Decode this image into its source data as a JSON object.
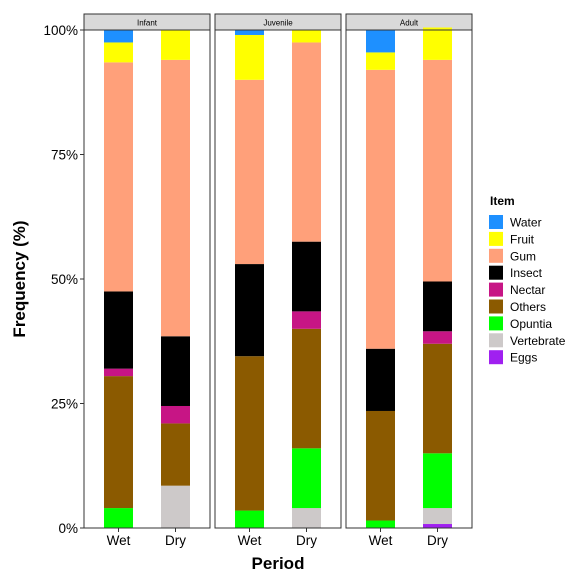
{
  "chart_data": {
    "type": "bar",
    "stacked": true,
    "normalized": true,
    "xlabel": "Period",
    "ylabel": "Frequency (%)",
    "ylim": [
      0,
      100
    ],
    "yticks": [
      "0%",
      "25%",
      "50%",
      "75%",
      "100%"
    ],
    "facets": [
      "Infant",
      "Juvenile",
      "Adult"
    ],
    "categories": [
      "Wet",
      "Dry"
    ],
    "legend": {
      "title": "Item",
      "position": "right",
      "items": [
        {
          "name": "Water",
          "color": "#1e90ff"
        },
        {
          "name": "Fruit",
          "color": "#ffff00"
        },
        {
          "name": "Gum",
          "color": "#ffa07a"
        },
        {
          "name": "Insect",
          "color": "#000000"
        },
        {
          "name": "Nectar",
          "color": "#c71585"
        },
        {
          "name": "Others",
          "color": "#8b5a00"
        },
        {
          "name": "Opuntia",
          "color": "#00ff00"
        },
        {
          "name": "Vertebrate",
          "color": "#cdc9c9"
        },
        {
          "name": "Eggs",
          "color": "#a020f0"
        }
      ]
    },
    "stack_order_bottom_to_top": [
      "Eggs",
      "Vertebrate",
      "Opuntia",
      "Others",
      "Nectar",
      "Insect",
      "Gum",
      "Fruit",
      "Water"
    ],
    "series": [
      {
        "name": "Water",
        "values": {
          "Infant": [
            2.5,
            0
          ],
          "Juvenile": [
            1.0,
            0
          ],
          "Adult": [
            4.5,
            0
          ]
        }
      },
      {
        "name": "Fruit",
        "values": {
          "Infant": [
            4.0,
            6.0
          ],
          "Juvenile": [
            9.0,
            2.5
          ],
          "Adult": [
            3.5,
            6.5
          ]
        }
      },
      {
        "name": "Gum",
        "values": {
          "Infant": [
            46.0,
            55.5
          ],
          "Juvenile": [
            37.0,
            40.0
          ],
          "Adult": [
            56.0,
            44.5
          ]
        }
      },
      {
        "name": "Insect",
        "values": {
          "Infant": [
            15.5,
            14.0
          ],
          "Juvenile": [
            18.5,
            14.0
          ],
          "Adult": [
            12.5,
            10.0
          ]
        }
      },
      {
        "name": "Nectar",
        "values": {
          "Infant": [
            1.5,
            3.5
          ],
          "Juvenile": [
            0,
            3.5
          ],
          "Adult": [
            0,
            2.5
          ]
        }
      },
      {
        "name": "Others",
        "values": {
          "Infant": [
            26.5,
            12.5
          ],
          "Juvenile": [
            31.0,
            24.0
          ],
          "Adult": [
            22.0,
            22.0
          ]
        }
      },
      {
        "name": "Opuntia",
        "values": {
          "Infant": [
            4.0,
            0
          ],
          "Juvenile": [
            3.5,
            12.0
          ],
          "Adult": [
            1.5,
            11.0
          ]
        }
      },
      {
        "name": "Vertebrate",
        "values": {
          "Infant": [
            0,
            8.5
          ],
          "Juvenile": [
            0,
            4.0
          ],
          "Adult": [
            0,
            3.2
          ]
        }
      },
      {
        "name": "Eggs",
        "values": {
          "Infant": [
            0,
            0
          ],
          "Juvenile": [
            0,
            0
          ],
          "Adult": [
            0,
            0.8
          ]
        }
      }
    ]
  }
}
